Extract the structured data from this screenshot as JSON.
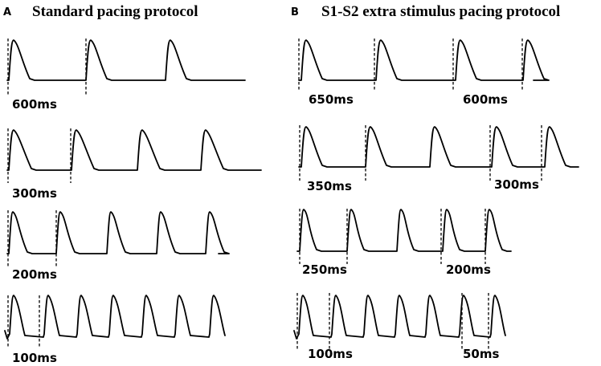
{
  "panels": [
    {
      "letter": "A",
      "title": "Standard pacing protocol",
      "rows": [
        {
          "labels": [
            "600ms"
          ],
          "beat_count": 3
        },
        {
          "labels": [
            "300ms"
          ],
          "beat_count": 4
        },
        {
          "labels": [
            "200ms"
          ],
          "beat_count": 5
        },
        {
          "labels": [
            "100ms"
          ],
          "beat_count": 7
        }
      ]
    },
    {
      "letter": "B",
      "title": "S1-S2 extra stimulus pacing protocol",
      "rows": [
        {
          "labels": [
            "650ms",
            "600ms"
          ],
          "beat_count": 4
        },
        {
          "labels": [
            "350ms",
            "300ms"
          ],
          "beat_count": 5
        },
        {
          "labels": [
            "250ms",
            "200ms"
          ],
          "beat_count": 5
        },
        {
          "labels": [
            "100ms",
            "50ms"
          ],
          "beat_count": 7
        }
      ]
    }
  ]
}
